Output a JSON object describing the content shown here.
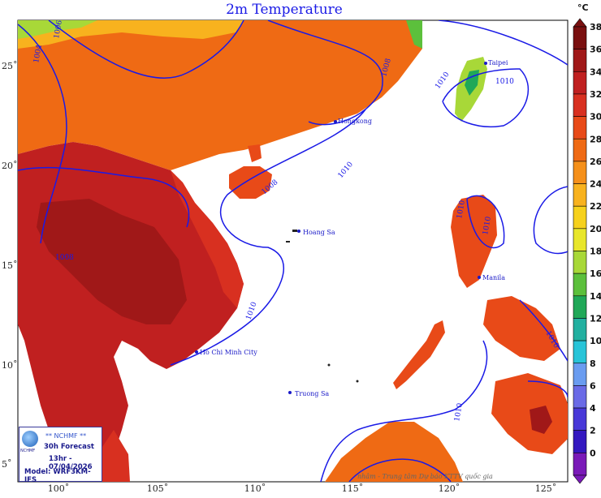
{
  "header": {
    "title": "2m Temperature"
  },
  "colorbar": {
    "unit": "°C",
    "labels": [
      "38",
      "36",
      "34",
      "32",
      "30",
      "28",
      "26",
      "24",
      "22",
      "20",
      "18",
      "16",
      "14",
      "12",
      "10",
      "8",
      "6",
      "4",
      "2",
      "0"
    ],
    "colors": [
      "#7a1010",
      "#a01818",
      "#c02020",
      "#d83020",
      "#e84a18",
      "#ef6a14",
      "#f5901a",
      "#f8b21e",
      "#f6d11c",
      "#e8e62a",
      "#a8d838",
      "#5cc03c",
      "#20a858",
      "#22b0a0",
      "#28c4d8",
      "#6a9cf0",
      "#6a6ae6",
      "#4838d8",
      "#3418c0",
      "#7a1ab8"
    ]
  },
  "axes": {
    "lon_labels": [
      "100˚",
      "105˚",
      "110˚",
      "115˚",
      "120˚",
      "125˚"
    ],
    "lat_labels": [
      "25˚",
      "20˚",
      "15˚",
      "10˚",
      "5˚"
    ]
  },
  "places": [
    "Taipei",
    "Hongkong",
    "Hoang Sa",
    "Truong Sa",
    "Manila",
    "Ho Chi Minh City"
  ],
  "isobars": [
    "1004",
    "1006",
    "1008",
    "1010",
    "1010",
    "1008",
    "1010",
    "1010",
    "1010",
    "1010",
    "1010",
    "1008",
    "1010"
  ],
  "info": {
    "org": "** NCHMF **",
    "logo_text": "NCHMF",
    "forecast": "30h Forecast",
    "run_time": "13hr - 07/04/2026",
    "model": "Model: WRF3KM-IFS"
  },
  "credit": "nhâm - Trung tâm Dự báo KTTV quốc gia"
}
